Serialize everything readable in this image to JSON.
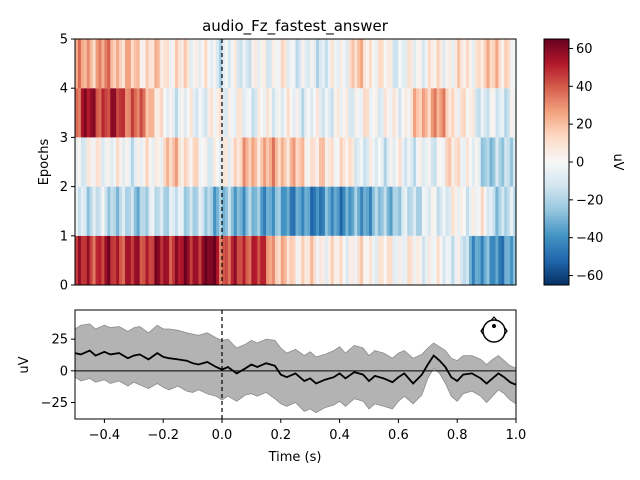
{
  "chart_data": [
    {
      "type": "heatmap",
      "title": "audio_Fz_fastest_answer",
      "xlim": [
        -0.5,
        1.0
      ],
      "ylim": [
        0,
        5
      ],
      "ylabel": "Epochs",
      "yticks": [
        0,
        1,
        2,
        3,
        4,
        5
      ],
      "yticklabels": [
        "0",
        "1",
        "2",
        "3",
        "4",
        "5"
      ],
      "event_marker_x": 0.0,
      "colormap": "RdBu_r",
      "rows": [
        {
          "epoch": 1,
          "mean_uV": 25,
          "control_x": [
            -0.5,
            -0.4,
            -0.3,
            -0.2,
            -0.1,
            -0.02,
            0.0,
            0.05,
            0.1,
            0.15,
            0.2,
            0.3,
            0.4,
            0.5,
            0.6,
            0.7,
            0.8,
            0.85,
            0.9,
            0.95,
            1.0
          ],
          "control_v": [
            45,
            50,
            48,
            52,
            55,
            62,
            40,
            45,
            48,
            40,
            15,
            8,
            3,
            5,
            2,
            0,
            -5,
            -30,
            -40,
            -38,
            -35
          ]
        },
        {
          "epoch": 2,
          "mean_uV": -15,
          "control_x": [
            -0.5,
            -0.4,
            -0.3,
            -0.2,
            -0.1,
            0.0,
            0.1,
            0.2,
            0.3,
            0.4,
            0.5,
            0.6,
            0.7,
            0.8,
            0.9,
            0.95,
            1.0
          ],
          "control_v": [
            -10,
            -15,
            -22,
            -12,
            -15,
            -28,
            -30,
            -35,
            -42,
            -38,
            -32,
            -20,
            -8,
            -2,
            0,
            -25,
            -10
          ]
        },
        {
          "epoch": 3,
          "mean_uV": 3,
          "control_x": [
            -0.5,
            -0.4,
            -0.3,
            -0.2,
            -0.15,
            -0.1,
            0.0,
            0.05,
            0.1,
            0.2,
            0.3,
            0.4,
            0.5,
            0.6,
            0.7,
            0.8,
            0.9,
            0.95,
            1.0
          ],
          "control_v": [
            -3,
            2,
            -5,
            8,
            20,
            5,
            -5,
            15,
            20,
            22,
            10,
            8,
            -8,
            -3,
            -8,
            12,
            -20,
            -25,
            -5
          ]
        },
        {
          "epoch": 4,
          "mean_uV": 15,
          "control_x": [
            -0.5,
            -0.45,
            -0.4,
            -0.35,
            -0.3,
            -0.25,
            -0.2,
            -0.1,
            0.0,
            0.1,
            0.2,
            0.3,
            0.4,
            0.5,
            0.6,
            0.7,
            0.72,
            0.75,
            0.8,
            0.9,
            1.0
          ],
          "control_v": [
            40,
            55,
            45,
            50,
            35,
            30,
            -3,
            -5,
            2,
            -4,
            0,
            -6,
            -3,
            2,
            -2,
            25,
            30,
            22,
            8,
            -10,
            -5
          ]
        },
        {
          "epoch": 5,
          "mean_uV": 10,
          "control_x": [
            -0.5,
            -0.4,
            -0.3,
            -0.2,
            -0.1,
            0.0,
            0.1,
            0.2,
            0.3,
            0.4,
            0.45,
            0.5,
            0.6,
            0.7,
            0.8,
            0.9,
            0.93,
            1.0
          ],
          "control_v": [
            22,
            28,
            15,
            10,
            5,
            -8,
            -5,
            2,
            -10,
            -3,
            15,
            10,
            -5,
            3,
            5,
            10,
            25,
            -8
          ]
        }
      ],
      "colorbar": {
        "label": "uV",
        "range": [
          -65,
          65
        ],
        "ticks": [
          -60,
          -40,
          -20,
          0,
          20,
          40,
          60
        ],
        "ticklabels": [
          "−60",
          "−40",
          "−20",
          "0",
          "20",
          "40",
          "60"
        ]
      }
    },
    {
      "type": "line",
      "xlabel": "Time (s)",
      "ylabel": "uV",
      "xlim": [
        -0.5,
        1.0
      ],
      "ylim": [
        -38,
        48
      ],
      "xticks": [
        -0.4,
        -0.2,
        0.0,
        0.2,
        0.4,
        0.6,
        0.8,
        1.0
      ],
      "xticklabels": [
        "−0.4",
        "−0.2",
        "0.0",
        "0.2",
        "0.4",
        "0.6",
        "0.8",
        "1.0"
      ],
      "yticks": [
        -25,
        0,
        25
      ],
      "yticklabels": [
        "−25",
        "0",
        "25"
      ],
      "event_marker_x": 0.0,
      "zero_line": true,
      "sensor_inset": "top-right",
      "series": [
        {
          "x": [
            -0.5,
            -0.48,
            -0.45,
            -0.43,
            -0.4,
            -0.38,
            -0.35,
            -0.32,
            -0.3,
            -0.28,
            -0.25,
            -0.22,
            -0.2,
            -0.18,
            -0.15,
            -0.12,
            -0.1,
            -0.08,
            -0.05,
            -0.02,
            0.0,
            0.02,
            0.05,
            0.08,
            0.1,
            0.12,
            0.15,
            0.18,
            0.2,
            0.22,
            0.25,
            0.28,
            0.3,
            0.32,
            0.35,
            0.38,
            0.4,
            0.42,
            0.45,
            0.48,
            0.5,
            0.52,
            0.55,
            0.58,
            0.6,
            0.62,
            0.65,
            0.68,
            0.7,
            0.72,
            0.74,
            0.76,
            0.78,
            0.8,
            0.82,
            0.85,
            0.88,
            0.9,
            0.92,
            0.94,
            0.96,
            0.98,
            1.0
          ],
          "values": [
            14,
            13,
            16,
            12,
            15,
            13,
            14,
            10,
            12,
            13,
            9,
            14,
            11,
            10,
            9,
            8,
            6,
            5,
            7,
            3,
            1,
            3,
            -2,
            2,
            5,
            3,
            6,
            4,
            -3,
            -5,
            -2,
            -8,
            -6,
            -10,
            -7,
            -5,
            -2,
            -6,
            -1,
            -3,
            -8,
            -4,
            -6,
            -9,
            -5,
            -2,
            -10,
            -3,
            5,
            12,
            8,
            3,
            -5,
            -8,
            -3,
            -2,
            -6,
            -10,
            -6,
            -2,
            -5,
            -9,
            -11
          ],
          "lower": [
            -5,
            -8,
            -6,
            -9,
            -7,
            -10,
            -8,
            -12,
            -9,
            -11,
            -14,
            -10,
            -13,
            -15,
            -12,
            -16,
            -17,
            -15,
            -18,
            -20,
            -23,
            -20,
            -24,
            -19,
            -18,
            -20,
            -17,
            -22,
            -26,
            -28,
            -25,
            -32,
            -30,
            -33,
            -29,
            -27,
            -24,
            -28,
            -22,
            -24,
            -30,
            -26,
            -28,
            -30,
            -24,
            -20,
            -26,
            -19,
            -6,
            2,
            -2,
            -10,
            -20,
            -24,
            -18,
            -16,
            -20,
            -25,
            -20,
            -15,
            -18,
            -23,
            -26
          ],
          "upper": [
            33,
            36,
            37,
            33,
            36,
            34,
            35,
            31,
            34,
            35,
            30,
            36,
            33,
            33,
            32,
            30,
            29,
            28,
            30,
            26,
            24,
            25,
            18,
            21,
            24,
            22,
            25,
            24,
            18,
            14,
            17,
            12,
            15,
            11,
            13,
            16,
            19,
            14,
            20,
            18,
            12,
            16,
            14,
            10,
            14,
            16,
            10,
            13,
            18,
            22,
            19,
            16,
            10,
            8,
            12,
            12,
            9,
            5,
            9,
            12,
            8,
            4,
            2
          ]
        }
      ]
    }
  ]
}
